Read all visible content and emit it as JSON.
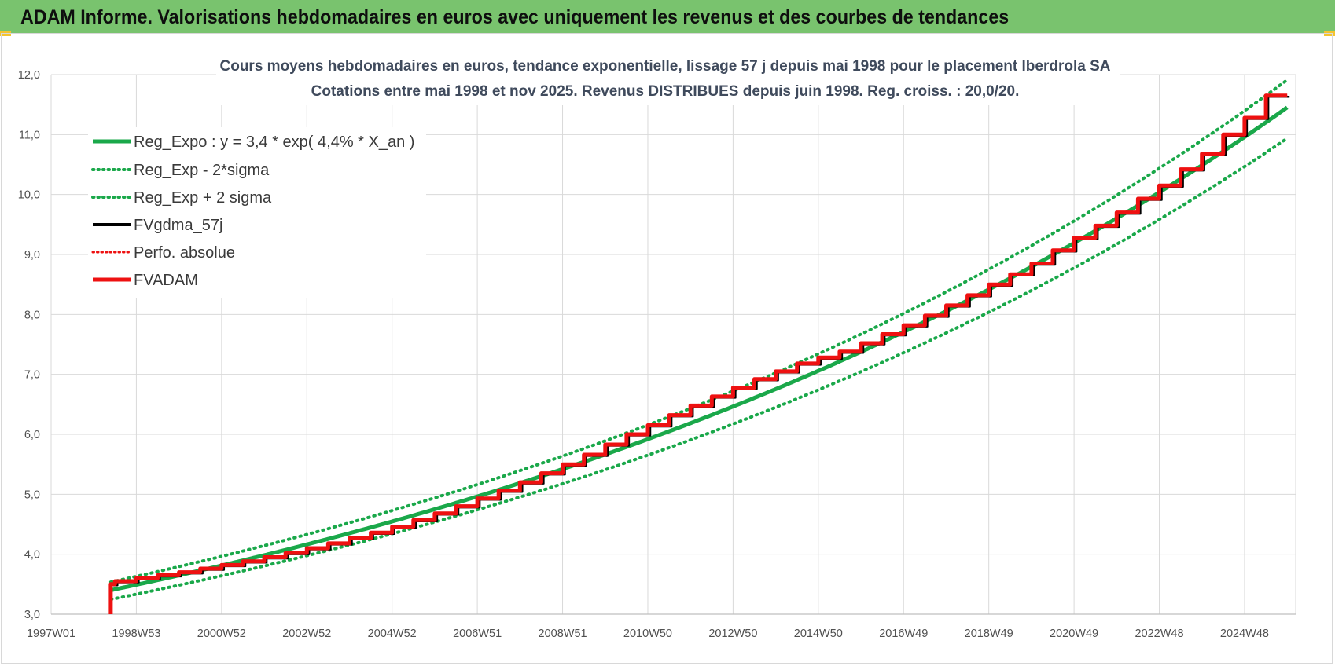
{
  "header": {
    "title": "ADAM Informe. Valorisations hebdomadaires en euros avec uniquement les revenus et des courbes de tendances"
  },
  "colors": {
    "header_bg": "#79c36e",
    "trend": "#1aa84a",
    "fv_gdma": "#000000",
    "fvadam": "#ee1111",
    "perfo": "#ee1111",
    "grid": "#d9d9d9"
  },
  "chart_data": {
    "type": "line",
    "title_lines": [
      "Cours moyens hebdomadaires en euros, tendance exponentielle, lissage 57 j depuis mai 1998 pour le placement Iberdrola SA",
      "Cotations entre mai 1998 et nov 2025. Revenus  DISTRIBUES depuis juin 1998. Reg.  croiss. : 20,0/20."
    ],
    "xlabel": "",
    "ylabel": "",
    "x_tick_labels": [
      "1997W01",
      "1998W53",
      "2000W52",
      "2002W52",
      "2004W52",
      "2006W51",
      "2008W51",
      "2010W50",
      "2012W50",
      "2014W50",
      "2016W49",
      "2018W49",
      "2020W49",
      "2022W48",
      "2024W48"
    ],
    "x_ticks_year": [
      1997.0,
      1999.0,
      2001.0,
      2003.0,
      2005.0,
      2007.0,
      2009.0,
      2011.0,
      2013.0,
      2015.0,
      2017.0,
      2019.0,
      2021.0,
      2023.0,
      2025.0
    ],
    "xlim_year": [
      1997.0,
      2026.2
    ],
    "ylim": [
      3.0,
      12.0
    ],
    "y_ticks": [
      "3,0",
      "4,0",
      "5,0",
      "6,0",
      "7,0",
      "8,0",
      "9,0",
      "10,0",
      "11,0",
      "12,0"
    ],
    "y_tick_values": [
      3,
      4,
      5,
      6,
      7,
      8,
      9,
      10,
      11,
      12
    ],
    "grid": true,
    "legend_position": "top-left",
    "trend": {
      "a": 3.4,
      "rate": 0.044,
      "x0_year": 1998.4,
      "x_end_year": 2026.0
    },
    "band_factors": {
      "upper": 1.04,
      "lower": 0.955
    },
    "series": [
      {
        "name": "Reg_Expo : y = 3,4 * exp( 4,4% *  X_an )",
        "key": "trend",
        "style": "solid-green"
      },
      {
        "name": "Reg_Exp - 2*sigma",
        "key": "lower",
        "style": "dotted-green"
      },
      {
        "name": "Reg_Exp + 2 sigma",
        "key": "upper",
        "style": "dotted-green"
      },
      {
        "name": "FVgdma_57j",
        "key": "fvgdma",
        "style": "solid-black"
      },
      {
        "name": "Perfo. absolue",
        "key": "perfo",
        "style": "dotted-red"
      },
      {
        "name": "FVADAM",
        "key": "fvadam",
        "style": "solid-red"
      }
    ],
    "fvadam_steps": {
      "start_year": 1998.4,
      "start_value": 3.0,
      "years": [
        1998.4,
        1998.5,
        1999.0,
        1999.5,
        2000.0,
        2000.5,
        2001.0,
        2001.5,
        2002.0,
        2002.5,
        2003.0,
        2003.5,
        2004.0,
        2004.5,
        2005.0,
        2005.5,
        2006.0,
        2006.5,
        2007.0,
        2007.5,
        2008.0,
        2008.5,
        2009.0,
        2009.5,
        2010.0,
        2010.5,
        2011.0,
        2011.5,
        2012.0,
        2012.5,
        2013.0,
        2013.5,
        2014.0,
        2014.5,
        2015.0,
        2015.5,
        2016.0,
        2016.5,
        2017.0,
        2017.5,
        2018.0,
        2018.5,
        2019.0,
        2019.5,
        2020.0,
        2020.5,
        2021.0,
        2021.5,
        2022.0,
        2022.5,
        2023.0,
        2023.5,
        2024.0,
        2024.5,
        2025.0,
        2025.5
      ],
      "values": [
        3.5,
        3.55,
        3.6,
        3.65,
        3.7,
        3.76,
        3.82,
        3.88,
        3.95,
        4.02,
        4.1,
        4.18,
        4.27,
        4.36,
        4.46,
        4.57,
        4.68,
        4.8,
        4.93,
        5.06,
        5.2,
        5.35,
        5.5,
        5.66,
        5.83,
        6.0,
        6.15,
        6.32,
        6.48,
        6.63,
        6.78,
        6.92,
        7.05,
        7.18,
        7.28,
        7.38,
        7.52,
        7.67,
        7.82,
        7.98,
        8.15,
        8.32,
        8.5,
        8.67,
        8.85,
        9.07,
        9.28,
        9.48,
        9.7,
        9.93,
        10.15,
        10.42,
        10.68,
        11.0,
        11.28,
        11.65
      ],
      "end_year": 2026.0
    }
  }
}
